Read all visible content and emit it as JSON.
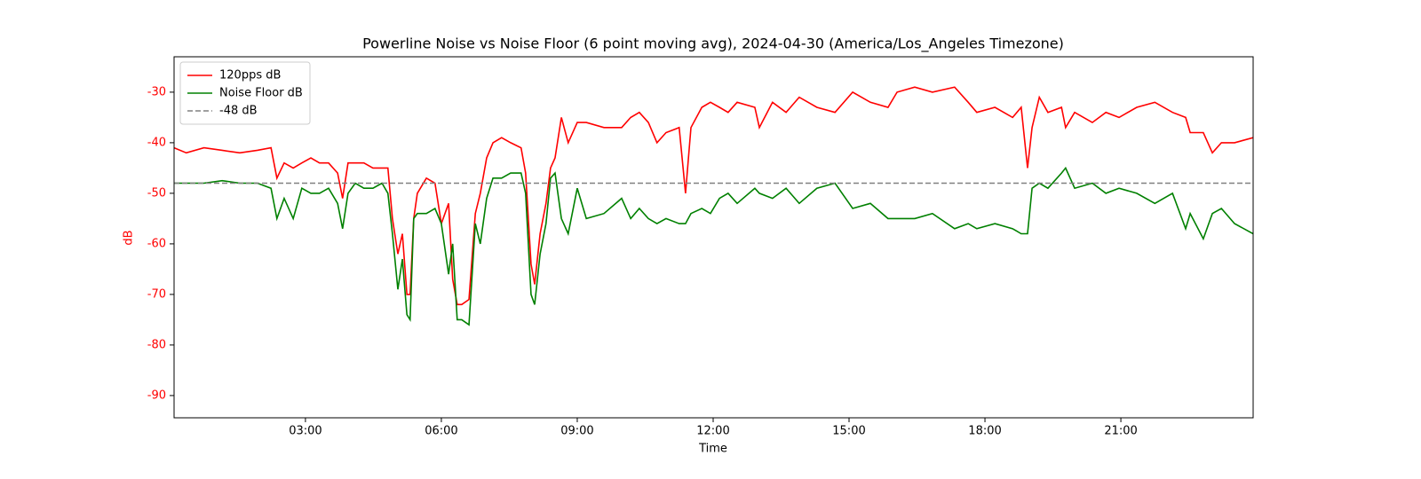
{
  "chart_data": {
    "type": "line",
    "title": "Powerline Noise vs Noise Floor (6 point moving avg), 2024-04-30 (America/Los_Angeles Timezone)",
    "x_label": "Time",
    "y_label": "dB",
    "y_axis_color": "#ff0000",
    "x": [
      0.1,
      0.37,
      0.76,
      1.16,
      1.55,
      1.94,
      2.24,
      2.37,
      2.53,
      2.73,
      2.92,
      3.12,
      3.31,
      3.51,
      3.71,
      3.82,
      3.94,
      4.1,
      4.29,
      4.49,
      4.69,
      4.82,
      4.92,
      5.04,
      5.14,
      5.24,
      5.31,
      5.39,
      5.47,
      5.67,
      5.86,
      6.0,
      6.16,
      6.25,
      6.35,
      6.45,
      6.61,
      6.75,
      6.86,
      7.0,
      7.14,
      7.33,
      7.53,
      7.76,
      7.86,
      7.98,
      8.06,
      8.18,
      8.31,
      8.41,
      8.51,
      8.65,
      8.8,
      9.0,
      9.2,
      9.59,
      9.98,
      10.18,
      10.37,
      10.57,
      10.76,
      10.96,
      11.25,
      11.39,
      11.51,
      11.75,
      11.94,
      12.14,
      12.33,
      12.53,
      12.92,
      13.02,
      13.31,
      13.61,
      13.9,
      14.29,
      14.69,
      15.08,
      15.47,
      15.86,
      16.06,
      16.45,
      16.84,
      17.33,
      17.63,
      17.82,
      18.22,
      18.61,
      18.8,
      18.94,
      19.04,
      19.2,
      19.39,
      19.69,
      19.78,
      19.98,
      20.37,
      20.67,
      20.96,
      21.35,
      21.75,
      22.14,
      22.43,
      22.53,
      22.82,
      23.02,
      23.22,
      23.51,
      23.92
    ],
    "series": [
      {
        "name": "120pps dB",
        "color": "#ff0000",
        "values": [
          -41,
          -42,
          -41,
          -41.5,
          -42,
          -41.5,
          -41,
          -47,
          -44,
          -45,
          -44,
          -43,
          -44,
          -44,
          -46,
          -51,
          -44,
          -44,
          -44,
          -45,
          -45,
          -45,
          -55,
          -62,
          -58,
          -70,
          -70,
          -55,
          -50,
          -47,
          -48,
          -56,
          -52,
          -67,
          -72,
          -72,
          -71,
          -54,
          -50,
          -43,
          -40,
          -39,
          -40,
          -41,
          -46,
          -64,
          -68,
          -58,
          -52,
          -45,
          -43,
          -35,
          -40,
          -36,
          -36,
          -37,
          -37,
          -35,
          -34,
          -36,
          -40,
          -38,
          -37,
          -50,
          -37,
          -33,
          -32,
          -33,
          -34,
          -32,
          -33,
          -37,
          -32,
          -34,
          -31,
          -33,
          -34,
          -30,
          -32,
          -33,
          -30,
          -29,
          -30,
          -29,
          -32,
          -34,
          -33,
          -35,
          -33,
          -45,
          -37,
          -31,
          -34,
          -33,
          -37,
          -34,
          -36,
          -34,
          -35,
          -33,
          -32,
          -34,
          -35,
          -38,
          -38,
          -42,
          -40,
          -40,
          -39
        ]
      },
      {
        "name": "Noise Floor dB",
        "color": "#008000",
        "values": [
          -48,
          -48,
          -48,
          -47.5,
          -48,
          -48,
          -49,
          -55,
          -51,
          -55,
          -49,
          -50,
          -50,
          -49,
          -52,
          -57,
          -50,
          -48,
          -49,
          -49,
          -48,
          -50,
          -58,
          -69,
          -63,
          -74,
          -75,
          -55,
          -54,
          -54,
          -53,
          -56,
          -66,
          -60,
          -75,
          -75,
          -76,
          -56,
          -60,
          -51,
          -47,
          -47,
          -46,
          -46,
          -50,
          -70,
          -72,
          -62,
          -56,
          -47,
          -46,
          -55,
          -58,
          -49,
          -55,
          -54,
          -51,
          -55,
          -53,
          -55,
          -56,
          -55,
          -56,
          -56,
          -54,
          -53,
          -54,
          -51,
          -50,
          -52,
          -49,
          -50,
          -51,
          -49,
          -52,
          -49,
          -48,
          -53,
          -52,
          -55,
          -55,
          -55,
          -54,
          -57,
          -56,
          -57,
          -56,
          -57,
          -58,
          -58,
          -49,
          -48,
          -49,
          -46,
          -45,
          -49,
          -48,
          -50,
          -49,
          -50,
          -52,
          -50,
          -57,
          -54,
          -59,
          -54,
          -53,
          -56,
          -58
        ]
      }
    ],
    "hlines": [
      {
        "name": "-48 dB",
        "value": -48,
        "color": "#808080"
      }
    ],
    "xlim": [
      0.1,
      23.92
    ],
    "xticks": [
      {
        "value": 3,
        "label": "03:00"
      },
      {
        "value": 6,
        "label": "06:00"
      },
      {
        "value": 9,
        "label": "09:00"
      },
      {
        "value": 12,
        "label": "12:00"
      },
      {
        "value": 15,
        "label": "15:00"
      },
      {
        "value": 18,
        "label": "18:00"
      },
      {
        "value": 21,
        "label": "21:00"
      }
    ],
    "ylim": [
      -94.4,
      -23
    ],
    "yticks": [
      -90,
      -80,
      -70,
      -60,
      -50,
      -40,
      -30
    ],
    "legend": "upper left"
  }
}
